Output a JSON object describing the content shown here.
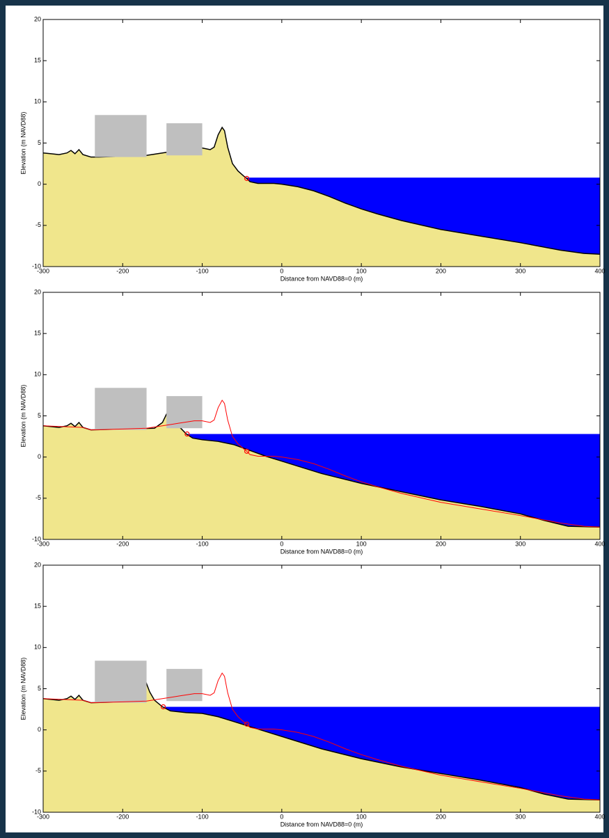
{
  "chart_data": [
    {
      "type": "area",
      "xlabel": "Distance from NAVD88=0 (m)",
      "ylabel": "Elevation (m NAVD88)",
      "xlim": [
        -300,
        400
      ],
      "ylim": [
        -10,
        20
      ],
      "xticks": [
        -300,
        -200,
        -100,
        0,
        100,
        200,
        300,
        400
      ],
      "yticks": [
        -10,
        -5,
        0,
        5,
        10,
        15,
        20
      ],
      "water_level": 0.8,
      "shoreline_x": -44,
      "water_color": "#0000ff",
      "structures": {
        "color": "#bfbfbf",
        "x": [
          [
            -235,
            -170
          ],
          [
            -145,
            -100
          ]
        ],
        "y": [
          [
            3.3,
            8.4
          ],
          [
            3.5,
            7.4
          ]
        ]
      },
      "profile": {
        "color": "#000000",
        "fill": "#f0e68c",
        "x": [
          -300,
          -290,
          -280,
          -270,
          -265,
          -260,
          -255,
          -250,
          -240,
          -230,
          -200,
          -170,
          -150,
          -130,
          -110,
          -100,
          -90,
          -85,
          -80,
          -75,
          -72,
          -68,
          -62,
          -55,
          -48,
          -44,
          -40,
          -30,
          -10,
          0,
          20,
          40,
          60,
          80,
          100,
          120,
          150,
          200,
          250,
          300,
          350,
          380,
          400
        ],
        "values": [
          3.8,
          3.7,
          3.6,
          3.8,
          4.1,
          3.7,
          4.2,
          3.6,
          3.3,
          3.3,
          3.4,
          3.5,
          3.8,
          4.1,
          4.4,
          4.4,
          4.2,
          4.5,
          6,
          6.9,
          6.5,
          4.5,
          2.5,
          1.6,
          1.0,
          0.7,
          0.3,
          0.1,
          0.1,
          0.0,
          -0.3,
          -0.8,
          -1.5,
          -2.3,
          -3.0,
          -3.6,
          -4.4,
          -5.5,
          -6.3,
          -7.1,
          -8.0,
          -8.4,
          -8.5
        ]
      },
      "markers": {
        "color": "#ff0000",
        "x": [
          -44
        ],
        "y": [
          0.7
        ]
      }
    },
    {
      "type": "area",
      "xlabel": "Distance from NAVD88=0 (m)",
      "ylabel": "Elevation (m NAVD88)",
      "xlim": [
        -300,
        400
      ],
      "ylim": [
        -10,
        20
      ],
      "xticks": [
        -300,
        -200,
        -100,
        0,
        100,
        200,
        300,
        400
      ],
      "yticks": [
        -10,
        -5,
        0,
        5,
        10,
        15,
        20
      ],
      "water_level": 2.8,
      "shoreline_x": -119,
      "water_color": "#0000ff",
      "structures": {
        "color": "#bfbfbf",
        "x": [
          [
            -235,
            -170
          ],
          [
            -145,
            -100
          ]
        ],
        "y": [
          [
            3.3,
            8.4
          ],
          [
            3.5,
            7.4
          ]
        ]
      },
      "profile": {
        "color": "#000000",
        "fill": "#f0e68c",
        "x": [
          -300,
          -290,
          -280,
          -270,
          -265,
          -260,
          -255,
          -250,
          -240,
          -200,
          -160,
          -150,
          -145,
          -142,
          -138,
          -130,
          -120,
          -112,
          -100,
          -80,
          -60,
          -40,
          -20,
          0,
          20,
          50,
          100,
          150,
          200,
          250,
          300,
          330,
          360,
          400
        ],
        "values": [
          3.8,
          3.7,
          3.6,
          3.8,
          4.1,
          3.7,
          4.2,
          3.6,
          3.3,
          3.4,
          3.5,
          4.2,
          5.2,
          5.6,
          4.8,
          3.8,
          2.8,
          2.3,
          2.1,
          1.9,
          1.5,
          0.8,
          0.1,
          -0.5,
          -1.1,
          -2.0,
          -3.2,
          -4.2,
          -5.2,
          -6.0,
          -6.9,
          -7.7,
          -8.4,
          -8.5
        ]
      },
      "initial": {
        "color": "#ff0000",
        "x": [
          -300,
          -250,
          -240,
          -200,
          -170,
          -150,
          -130,
          -110,
          -100,
          -90,
          -85,
          -80,
          -75,
          -72,
          -68,
          -62,
          -55,
          -48,
          -44,
          -40,
          -30,
          -10,
          0,
          20,
          40,
          60,
          80,
          100,
          120,
          150,
          200,
          250,
          300,
          350,
          380,
          400
        ],
        "values": [
          3.8,
          3.6,
          3.3,
          3.4,
          3.5,
          3.8,
          4.1,
          4.4,
          4.4,
          4.2,
          4.5,
          6,
          6.9,
          6.5,
          4.5,
          2.5,
          1.6,
          1.0,
          0.7,
          0.3,
          0.1,
          0.1,
          0.0,
          -0.3,
          -0.8,
          -1.5,
          -2.3,
          -3.0,
          -3.6,
          -4.4,
          -5.5,
          -6.3,
          -7.1,
          -8.0,
          -8.4,
          -8.5
        ]
      },
      "markers": {
        "color": "#ff0000",
        "x": [
          -119,
          -44
        ],
        "y": [
          2.8,
          0.7
        ]
      }
    },
    {
      "type": "area",
      "xlabel": "Distance from NAVD88=0 (m)",
      "ylabel": "Elevation (m NAVD88)",
      "xlim": [
        -300,
        400
      ],
      "ylim": [
        -10,
        20
      ],
      "xticks": [
        -300,
        -200,
        -100,
        0,
        100,
        200,
        300,
        400
      ],
      "yticks": [
        -10,
        -5,
        0,
        5,
        10,
        15,
        20
      ],
      "water_level": 2.8,
      "shoreline_x": -149,
      "water_color": "#0000ff",
      "structures": {
        "color": "#bfbfbf",
        "x": [
          [
            -235,
            -170
          ],
          [
            -145,
            -100
          ]
        ],
        "y": [
          [
            3.3,
            8.4
          ],
          [
            3.5,
            7.4
          ]
        ]
      },
      "profile": {
        "color": "#000000",
        "fill": "#f0e68c",
        "x": [
          -300,
          -290,
          -280,
          -270,
          -265,
          -260,
          -255,
          -250,
          -240,
          -200,
          -180,
          -175,
          -170,
          -166,
          -160,
          -150,
          -140,
          -120,
          -100,
          -80,
          -60,
          -40,
          -20,
          0,
          20,
          50,
          100,
          150,
          200,
          250,
          300,
          330,
          360,
          400
        ],
        "values": [
          3.8,
          3.7,
          3.6,
          3.8,
          4.1,
          3.7,
          4.2,
          3.6,
          3.3,
          3.4,
          3.5,
          4.3,
          5.6,
          4.6,
          3.6,
          2.8,
          2.3,
          2.1,
          2.0,
          1.6,
          1.0,
          0.4,
          -0.2,
          -0.8,
          -1.4,
          -2.3,
          -3.5,
          -4.5,
          -5.3,
          -6.1,
          -7.0,
          -7.8,
          -8.4,
          -8.5
        ]
      },
      "initial": {
        "color": "#ff0000",
        "x": [
          -300,
          -250,
          -240,
          -200,
          -170,
          -150,
          -130,
          -110,
          -100,
          -90,
          -85,
          -80,
          -75,
          -72,
          -68,
          -62,
          -55,
          -48,
          -44,
          -40,
          -30,
          -10,
          0,
          20,
          40,
          60,
          80,
          100,
          120,
          150,
          200,
          250,
          300,
          350,
          380,
          400
        ],
        "values": [
          3.8,
          3.6,
          3.3,
          3.4,
          3.5,
          3.8,
          4.1,
          4.4,
          4.4,
          4.2,
          4.5,
          6,
          6.9,
          6.5,
          4.5,
          2.5,
          1.6,
          1.0,
          0.7,
          0.3,
          0.1,
          0.1,
          0.0,
          -0.3,
          -0.8,
          -1.5,
          -2.3,
          -3.0,
          -3.6,
          -4.4,
          -5.5,
          -6.3,
          -7.1,
          -8.0,
          -8.4,
          -8.5
        ]
      },
      "markers": {
        "color": "#ff0000",
        "x": [
          -149,
          -44
        ],
        "y": [
          2.8,
          0.7
        ]
      }
    }
  ]
}
